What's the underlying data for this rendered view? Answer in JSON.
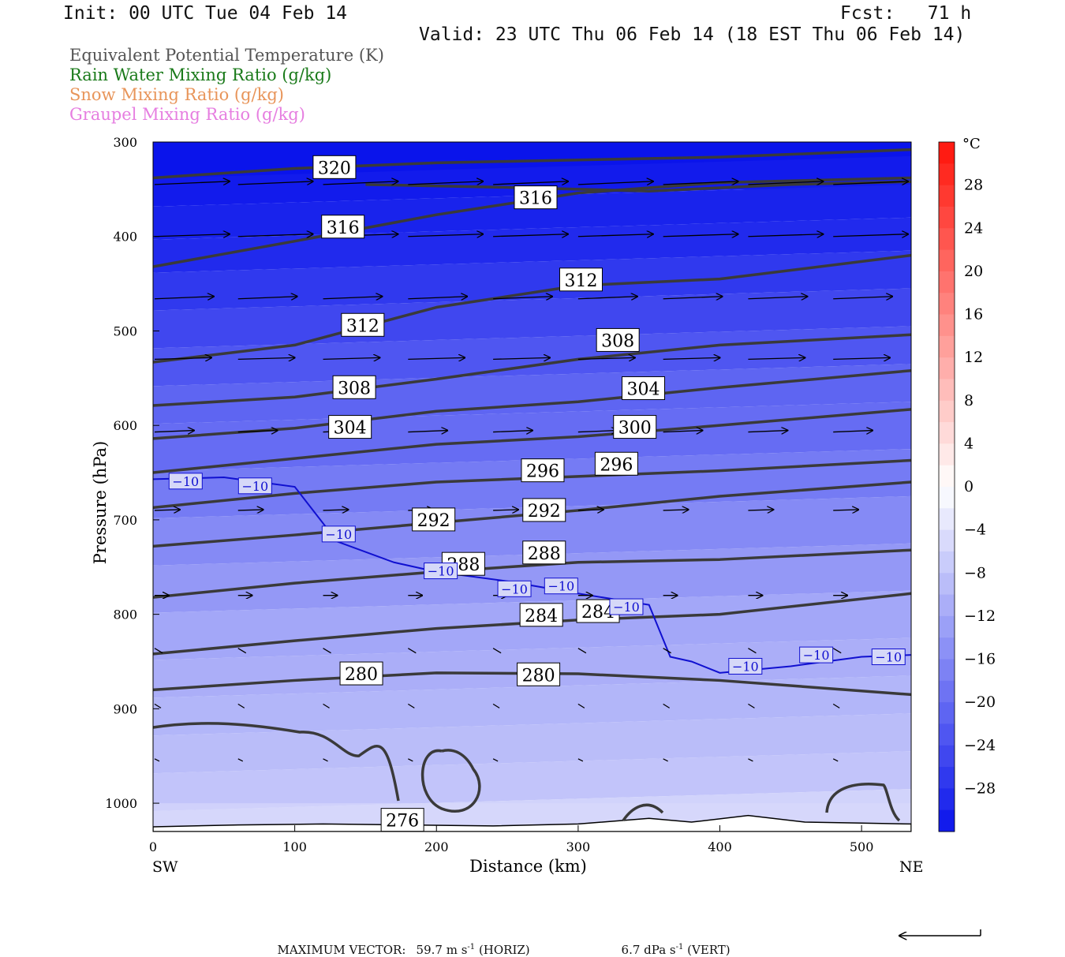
{
  "header": {
    "init": "Init: 00 UTC Tue 04 Feb 14",
    "fcst": "Fcst:   71 h",
    "valid": "Valid: 23 UTC Thu 06 Feb 14 (18 EST Thu 06 Feb 14)"
  },
  "fields": [
    {
      "label": "Equivalent Potential Temperature (K)",
      "color": "#555555"
    },
    {
      "label": "Rain Water Mixing Ratio (g/kg)",
      "color": "#1a7a1a"
    },
    {
      "label": "Snow Mixing Ratio (g/kg)",
      "color": "#e8955a"
    },
    {
      "label": "Graupel Mixing Ratio (g/kg)",
      "color": "#e67ee0"
    }
  ],
  "footer": {
    "max_vector_label": "MAXIMUM VECTOR:",
    "horiz": "59.7 m s",
    "horiz_sup": "-1",
    "horiz_tag": "(HORIZ)",
    "vert": "6.7 dPa s",
    "vert_sup": "-1",
    "vert_tag": "(VERT)"
  },
  "chart_data": {
    "type": "cross-section",
    "xlabel": "Distance (km)",
    "ylabel": "Pressure (hPa)",
    "x_left_label": "SW",
    "x_right_label": "NE",
    "xlim": [
      0,
      535
    ],
    "ylim": [
      1030,
      300
    ],
    "x_ticks": [
      0,
      100,
      200,
      300,
      400,
      500
    ],
    "y_ticks": [
      300,
      400,
      500,
      600,
      700,
      800,
      900,
      1000
    ],
    "colorbar": {
      "unit": "°C",
      "range": [
        -32,
        32
      ],
      "tick_values": [
        28,
        24,
        20,
        16,
        12,
        8,
        4,
        0,
        -4,
        -8,
        -12,
        -16,
        -20,
        -24,
        -28
      ],
      "tick_labels": [
        "28",
        "24",
        "20",
        "16",
        "12",
        "8",
        "4",
        "0",
        "−4",
        "−8",
        "−12",
        "−16",
        "−20",
        "−24",
        "−28"
      ]
    },
    "theta_e_contours": [
      {
        "level": 320,
        "p": [
          [
            0,
            338
          ],
          [
            100,
            328
          ],
          [
            200,
            322
          ],
          [
            300,
            319
          ],
          [
            400,
            316
          ],
          [
            535,
            308
          ]
        ],
        "label": "320",
        "lx": 128,
        "lp": 327
      },
      {
        "level": 316,
        "p": [
          [
            0,
            432
          ],
          [
            100,
            405
          ],
          [
            200,
            377
          ],
          [
            300,
            354
          ],
          [
            400,
            343
          ],
          [
            535,
            338
          ]
        ],
        "label": "316",
        "lx": 134,
        "lp": 390
      },
      {
        "level": 316,
        "p": [
          [
            150,
            345
          ],
          [
            250,
            348
          ],
          [
            350,
            352
          ],
          [
            450,
            345
          ],
          [
            535,
            342
          ]
        ],
        "label": "316",
        "lx": 270,
        "lp": 359
      },
      {
        "level": 312,
        "p": [
          [
            0,
            533
          ],
          [
            100,
            515
          ],
          [
            200,
            475
          ],
          [
            300,
            452
          ],
          [
            400,
            445
          ],
          [
            535,
            420
          ]
        ],
        "label": "312",
        "lx": 148,
        "lp": 494
      },
      {
        "level": 312,
        "p": [],
        "label": "312",
        "lx": 302,
        "lp": 446
      },
      {
        "level": 308,
        "p": [
          [
            0,
            579
          ],
          [
            100,
            570
          ],
          [
            200,
            551
          ],
          [
            300,
            530
          ],
          [
            400,
            515
          ],
          [
            535,
            504
          ]
        ],
        "label": "308",
        "lx": 142,
        "lp": 560
      },
      {
        "level": 308,
        "p": [],
        "label": "308",
        "lx": 328,
        "lp": 510
      },
      {
        "level": 304,
        "p": [
          [
            0,
            614
          ],
          [
            100,
            603
          ],
          [
            200,
            585
          ],
          [
            300,
            575
          ],
          [
            400,
            560
          ],
          [
            535,
            542
          ]
        ],
        "label": "304",
        "lx": 139,
        "lp": 602
      },
      {
        "level": 304,
        "p": [],
        "label": "304",
        "lx": 346,
        "lp": 561
      },
      {
        "level": 300,
        "p": [
          [
            0,
            650
          ],
          [
            100,
            635
          ],
          [
            200,
            620
          ],
          [
            300,
            612
          ],
          [
            400,
            600
          ],
          [
            535,
            583
          ]
        ],
        "label": "300",
        "lx": 340,
        "lp": 602
      },
      {
        "level": 296,
        "p": [
          [
            0,
            687
          ],
          [
            100,
            672
          ],
          [
            200,
            660
          ],
          [
            300,
            654
          ],
          [
            400,
            648
          ],
          [
            535,
            637
          ]
        ],
        "label": "296",
        "lx": 275,
        "lp": 648
      },
      {
        "level": 296,
        "p": [],
        "label": "296",
        "lx": 327,
        "lp": 641
      },
      {
        "level": 292,
        "p": [
          [
            0,
            728
          ],
          [
            100,
            716
          ],
          [
            200,
            703
          ],
          [
            300,
            690
          ],
          [
            400,
            675
          ],
          [
            535,
            660
          ]
        ],
        "label": "292",
        "lx": 198,
        "lp": 700
      },
      {
        "level": 292,
        "p": [],
        "label": "292",
        "lx": 276,
        "lp": 690
      },
      {
        "level": 288,
        "p": [
          [
            0,
            782
          ],
          [
            100,
            767
          ],
          [
            200,
            755
          ],
          [
            300,
            745
          ],
          [
            400,
            742
          ],
          [
            535,
            732
          ]
        ],
        "label": "288",
        "lx": 219,
        "lp": 747
      },
      {
        "level": 288,
        "p": [],
        "label": "288",
        "lx": 276,
        "lp": 735
      },
      {
        "level": 284,
        "p": [
          [
            0,
            842
          ],
          [
            100,
            828
          ],
          [
            200,
            815
          ],
          [
            300,
            806
          ],
          [
            400,
            800
          ],
          [
            535,
            778
          ]
        ],
        "label": "284",
        "lx": 274,
        "lp": 801
      },
      {
        "level": 284,
        "p": [],
        "label": "284",
        "lx": 314,
        "lp": 797
      },
      {
        "level": 280,
        "p": [
          [
            0,
            880
          ],
          [
            100,
            870
          ],
          [
            200,
            862
          ],
          [
            300,
            863
          ],
          [
            400,
            870
          ],
          [
            535,
            885
          ]
        ],
        "label": "280",
        "lx": 147,
        "lp": 863
      },
      {
        "level": 280,
        "p": [],
        "label": "280",
        "lx": 272,
        "lp": 864
      },
      {
        "level": 276,
        "p": [],
        "label": "276",
        "lx": 176,
        "lp": 1018
      }
    ],
    "temperature_isotherm": {
      "value": -10,
      "label": "−10",
      "p": [
        [
          0,
          657
        ],
        [
          50,
          655
        ],
        [
          100,
          665
        ],
        [
          130,
          723
        ],
        [
          170,
          745
        ],
        [
          200,
          755
        ],
        [
          250,
          765
        ],
        [
          300,
          778
        ],
        [
          350,
          790
        ],
        [
          365,
          845
        ],
        [
          380,
          850
        ],
        [
          400,
          862
        ],
        [
          450,
          855
        ],
        [
          500,
          845
        ],
        [
          535,
          843
        ]
      ],
      "label_positions": [
        [
          23,
          659
        ],
        [
          72,
          664
        ],
        [
          131,
          715
        ],
        [
          203,
          754
        ],
        [
          255,
          773
        ],
        [
          288,
          770
        ],
        [
          334,
          792
        ],
        [
          418,
          855
        ],
        [
          468,
          843
        ],
        [
          519,
          845
        ]
      ]
    }
  }
}
